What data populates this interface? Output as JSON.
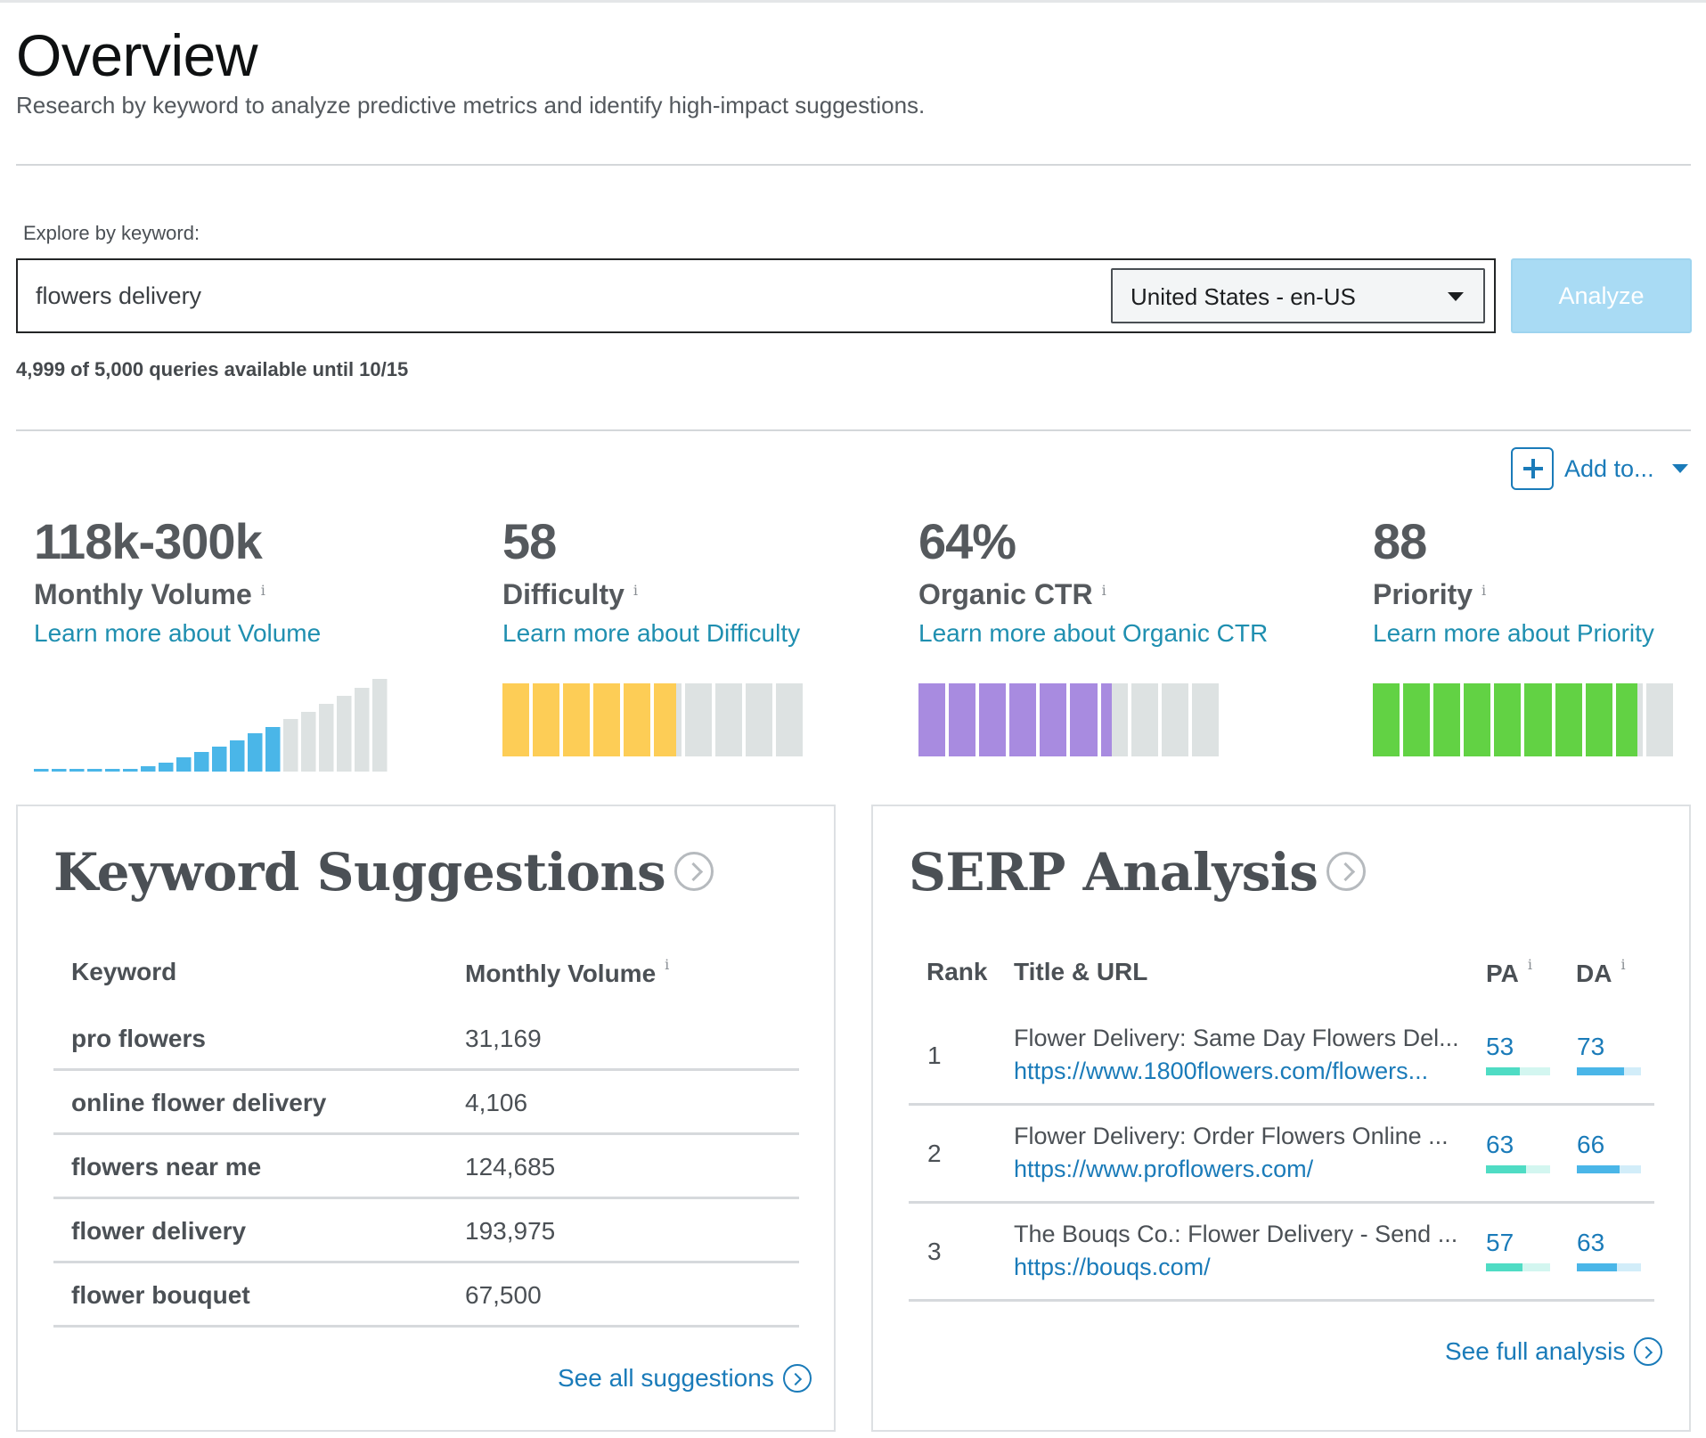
{
  "header": {
    "title": "Overview",
    "subtitle": "Research by keyword to analyze predictive metrics and identify high-impact suggestions."
  },
  "search": {
    "label": "Explore by keyword:",
    "value": "flowers delivery",
    "locale": "United States - en-US",
    "analyze_label": "Analyze",
    "queries_text": "4,999 of 5,000 queries available until 10/15"
  },
  "add_to": {
    "label": "Add to..."
  },
  "metrics": {
    "volume": {
      "value": "118k-300k",
      "label": "Monthly Volume",
      "link": "Learn more about Volume",
      "info": "i"
    },
    "difficulty": {
      "value": "58",
      "label": "Difficulty",
      "link": "Learn more about Difficulty",
      "info": "i",
      "score": 58,
      "color": "#fdcd56"
    },
    "ctr": {
      "value": "64%",
      "label": "Organic CTR",
      "link": "Learn more about Organic CTR",
      "info": "i",
      "score": 64,
      "color": "#a88be0"
    },
    "priority": {
      "value": "88",
      "label": "Priority",
      "link": "Learn more about Priority",
      "info": "i",
      "score": 88,
      "color": "#62d244"
    }
  },
  "volume_bars": {
    "filled": 14,
    "total": 20,
    "color": "#4ab6e8",
    "empty_color": "#dde2e2"
  },
  "keyword_suggestions": {
    "title": "Keyword Suggestions",
    "col_keyword": "Keyword",
    "col_volume": "Monthly Volume",
    "info": "i",
    "rows": [
      {
        "keyword": "pro flowers",
        "volume": "31,169"
      },
      {
        "keyword": "online flower delivery",
        "volume": "4,106"
      },
      {
        "keyword": "flowers near me",
        "volume": "124,685"
      },
      {
        "keyword": "flower delivery",
        "volume": "193,975"
      },
      {
        "keyword": "flower bouquet",
        "volume": "67,500"
      }
    ],
    "see_all": "See all suggestions"
  },
  "serp": {
    "title": "SERP Analysis",
    "col_rank": "Rank",
    "col_title": "Title & URL",
    "col_pa": "PA",
    "col_da": "DA",
    "info": "i",
    "pa_color": "#4fdcc4",
    "da_color": "#4ab6e8",
    "rows": [
      {
        "rank": "1",
        "title": "Flower Delivery: Same Day Flowers Del...",
        "url": "https://www.1800flowers.com/flowers...",
        "pa": "53",
        "da": "73",
        "pa_score": 53,
        "da_score": 73
      },
      {
        "rank": "2",
        "title": "Flower Delivery: Order Flowers Online ...",
        "url": "https://www.proflowers.com/",
        "pa": "63",
        "da": "66",
        "pa_score": 63,
        "da_score": 66
      },
      {
        "rank": "3",
        "title": "The Bouqs Co.: Flower Delivery - Send ...",
        "url": "https://bouqs.com/",
        "pa": "57",
        "da": "63",
        "pa_score": 57,
        "da_score": 63
      }
    ],
    "see_full": "See full analysis"
  }
}
